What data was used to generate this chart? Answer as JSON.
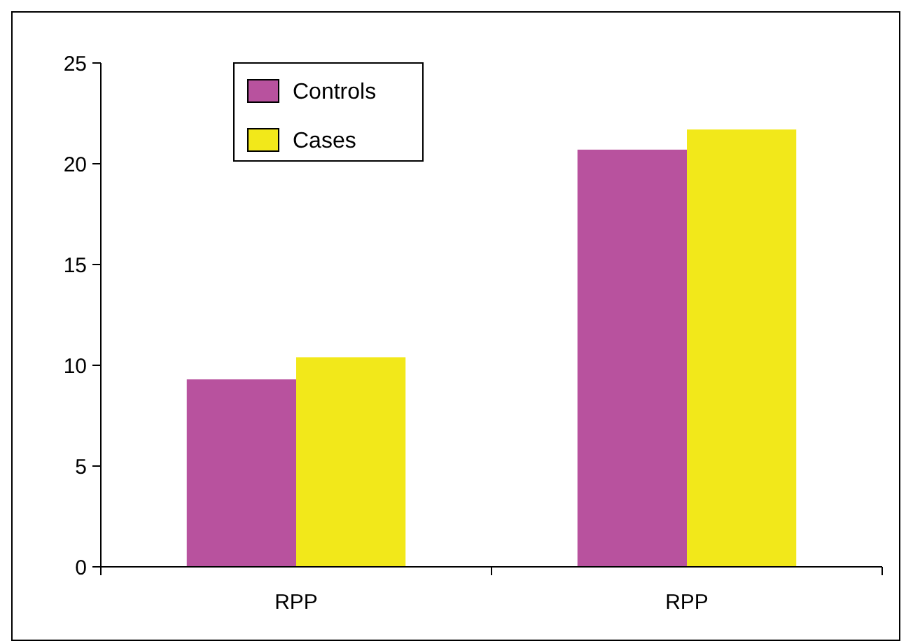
{
  "chart_data": {
    "type": "bar",
    "categories": [
      "RPP",
      "RPP"
    ],
    "series": [
      {
        "name": "Controls",
        "color": "#b8529e",
        "values": [
          9.3,
          20.7
        ]
      },
      {
        "name": "Cases",
        "color": "#f2e81a",
        "values": [
          10.4,
          21.7
        ]
      }
    ],
    "ylim": [
      0,
      25
    ],
    "yticks": [
      0,
      5,
      10,
      15,
      20,
      25
    ],
    "grid": false,
    "legend": "top left"
  }
}
